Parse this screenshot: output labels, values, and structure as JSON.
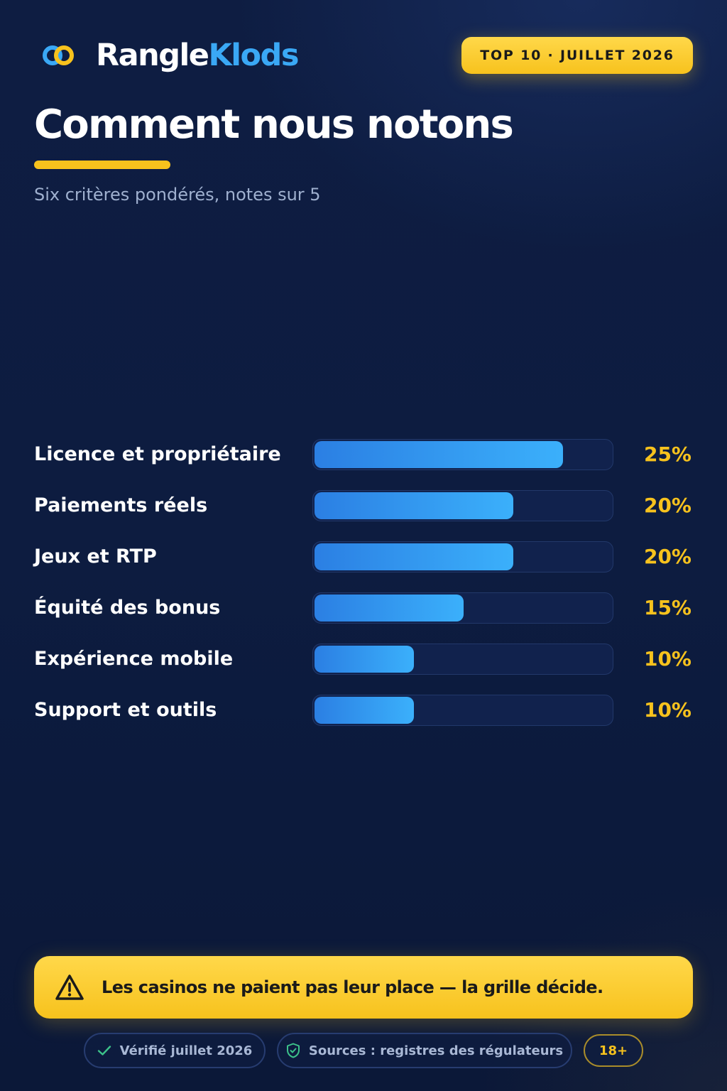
{
  "brand": {
    "name_part1": "Rangle",
    "name_part2": "Klods",
    "logo_icon": "double-ring-logo-icon"
  },
  "badge": {
    "label": "TOP 10 · JUILLET 2026"
  },
  "header": {
    "title": "Comment nous notons",
    "subtitle": "Six critères pondérés, notes sur 5"
  },
  "colors": {
    "background": "#0d1c40",
    "accent_yellow": "#f7c21d",
    "accent_blue": "#3aa8f5",
    "bar_start": "#2b7fe3",
    "bar_end": "#3bb0fb"
  },
  "chart_data": {
    "type": "bar",
    "orientation": "horizontal",
    "categories": [
      "Licence et propriétaire",
      "Paiements réels",
      "Jeux et RTP",
      "Équité des bonus",
      "Expérience mobile",
      "Support et outils"
    ],
    "values": [
      25,
      20,
      20,
      15,
      10,
      10
    ],
    "value_labels": [
      "25%",
      "20%",
      "20%",
      "15%",
      "10%",
      "10%"
    ],
    "unit": "%",
    "xlim": [
      0,
      30
    ],
    "grid": false,
    "legend": false
  },
  "disclaimer": {
    "icon": "warning-triangle-icon",
    "text": "Les casinos ne paient pas leur place — la grille décide."
  },
  "footer": {
    "verified": {
      "icon": "check-icon",
      "label": "Vérifié juillet 2026"
    },
    "sources": {
      "icon": "shield-check-icon",
      "label": "Sources : registres des régulateurs"
    },
    "age": {
      "label": "18+"
    }
  }
}
